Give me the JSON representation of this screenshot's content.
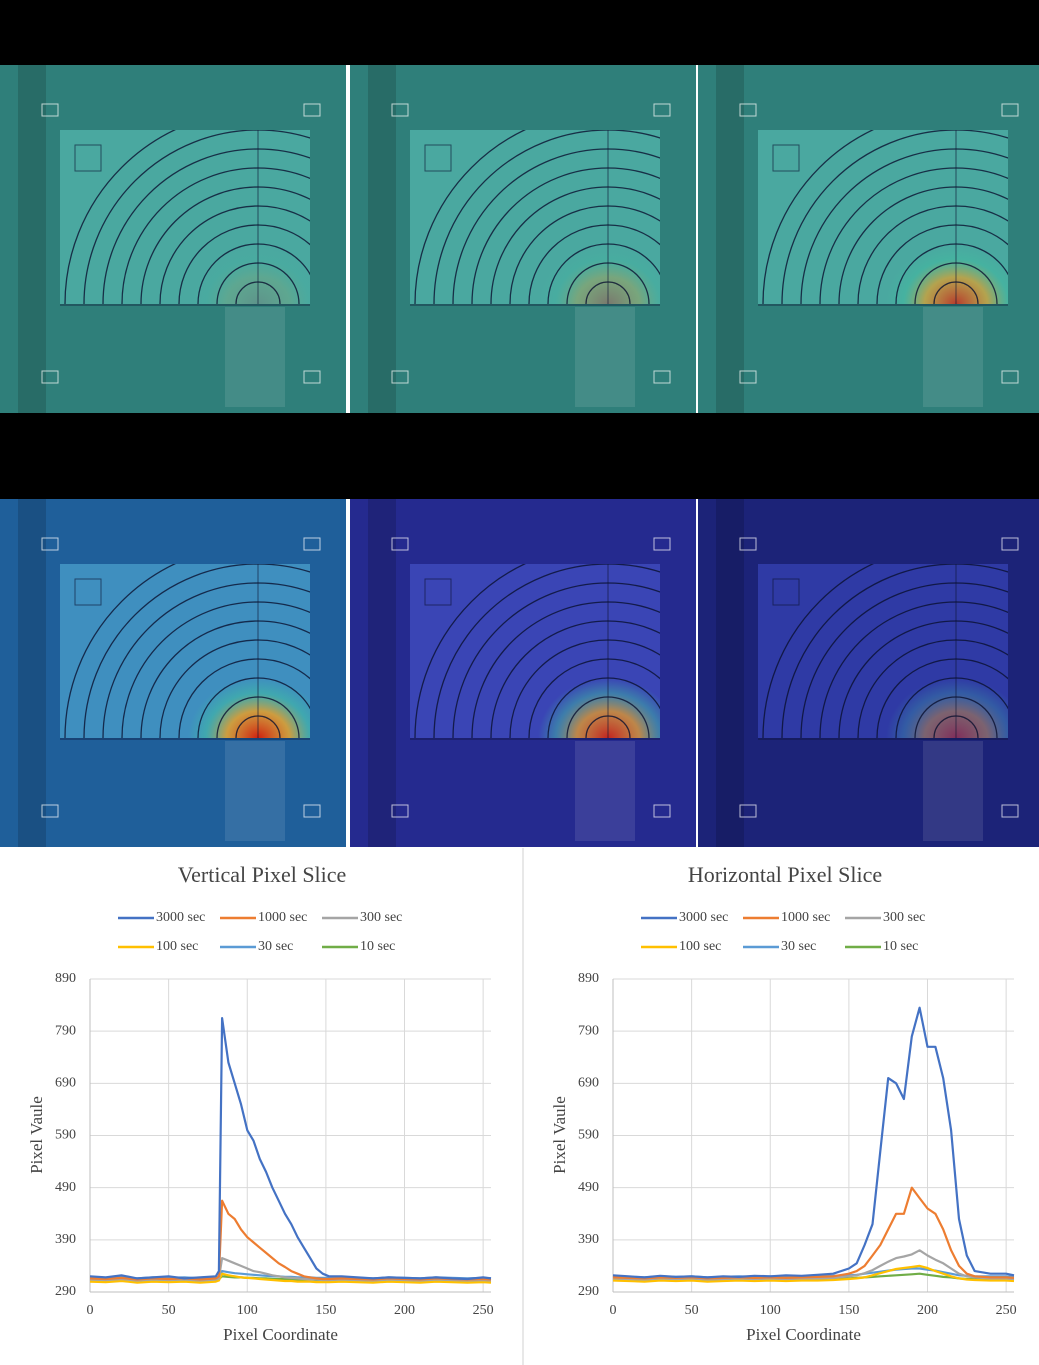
{
  "chart_data": [
    {
      "type": "line",
      "title": "Vertical Pixel Slice",
      "x_label": "Pixel Coordinate",
      "y_label": "Pixel Vaule",
      "x": [
        0,
        10,
        20,
        30,
        40,
        50,
        60,
        70,
        80,
        82,
        84,
        88,
        92,
        96,
        100,
        104,
        108,
        112,
        116,
        120,
        124,
        128,
        132,
        136,
        140,
        144,
        148,
        152,
        160,
        170,
        180,
        190,
        200,
        210,
        220,
        230,
        240,
        250,
        255
      ],
      "series": [
        {
          "name": "3000 sec",
          "color": "#4472c4",
          "values": [
            320,
            318,
            322,
            316,
            318,
            320,
            316,
            318,
            320,
            330,
            815,
            730,
            690,
            650,
            600,
            580,
            545,
            520,
            490,
            465,
            440,
            420,
            395,
            375,
            355,
            335,
            325,
            320,
            320,
            318,
            316,
            318,
            317,
            316,
            318,
            316,
            315,
            318,
            316
          ]
        },
        {
          "name": "1000 sec",
          "color": "#ed7d31",
          "values": [
            316,
            315,
            317,
            314,
            316,
            315,
            316,
            314,
            316,
            320,
            465,
            440,
            430,
            410,
            395,
            385,
            375,
            365,
            355,
            345,
            338,
            330,
            325,
            320,
            318,
            316,
            315,
            315,
            316,
            315,
            314,
            316,
            315,
            314,
            316,
            315,
            314,
            315,
            314
          ]
        },
        {
          "name": "300 sec",
          "color": "#a5a5a5",
          "values": [
            314,
            313,
            315,
            312,
            314,
            313,
            314,
            312,
            314,
            316,
            355,
            350,
            345,
            340,
            335,
            330,
            328,
            325,
            322,
            320,
            318,
            317,
            316,
            315,
            314,
            314,
            313,
            313,
            314,
            313,
            312,
            314,
            313,
            312,
            314,
            313,
            312,
            313,
            312
          ]
        },
        {
          "name": "100 sec",
          "color": "#ffc000",
          "values": [
            310,
            309,
            311,
            308,
            310,
            309,
            310,
            308,
            310,
            312,
            325,
            322,
            320,
            318,
            317,
            316,
            315,
            314,
            313,
            312,
            311,
            311,
            310,
            310,
            310,
            309,
            309,
            309,
            310,
            309,
            308,
            310,
            309,
            308,
            310,
            309,
            308,
            309,
            308
          ]
        },
        {
          "name": "30 sec",
          "color": "#5b9bd5",
          "values": [
            318,
            317,
            319,
            316,
            318,
            317,
            318,
            316,
            318,
            320,
            330,
            328,
            326,
            325,
            324,
            323,
            322,
            321,
            320,
            320,
            319,
            319,
            318,
            318,
            318,
            317,
            317,
            317,
            318,
            317,
            316,
            318,
            317,
            316,
            318,
            317,
            316,
            317,
            316
          ]
        },
        {
          "name": "10 sec",
          "color": "#70ad47",
          "values": [
            314,
            313,
            315,
            312,
            314,
            313,
            314,
            312,
            314,
            315,
            320,
            319,
            318,
            318,
            317,
            317,
            316,
            316,
            315,
            315,
            315,
            314,
            314,
            314,
            314,
            313,
            313,
            313,
            314,
            313,
            312,
            314,
            313,
            312,
            314,
            313,
            312,
            313,
            312
          ]
        }
      ],
      "xlim": [
        0,
        255
      ],
      "xticks": [
        0,
        50,
        100,
        150,
        200,
        250
      ],
      "ylim": [
        290,
        890
      ],
      "yticks": [
        290,
        390,
        490,
        590,
        690,
        790,
        890
      ],
      "grid": true,
      "legend": "top"
    },
    {
      "type": "line",
      "title": "Horizontal Pixel Slice",
      "x_label": "Pixel Coordinate",
      "y_label": "Pixel Vaule",
      "x": [
        0,
        10,
        20,
        30,
        40,
        50,
        60,
        70,
        80,
        90,
        100,
        110,
        120,
        130,
        140,
        150,
        155,
        160,
        165,
        170,
        175,
        180,
        185,
        190,
        195,
        200,
        205,
        210,
        215,
        220,
        225,
        230,
        240,
        250,
        255
      ],
      "series": [
        {
          "name": "3000 sec",
          "color": "#4472c4",
          "values": [
            322,
            320,
            318,
            321,
            319,
            320,
            318,
            320,
            319,
            321,
            320,
            322,
            321,
            323,
            325,
            335,
            345,
            380,
            420,
            560,
            700,
            690,
            660,
            780,
            835,
            760,
            760,
            700,
            600,
            430,
            360,
            330,
            325,
            325,
            322
          ]
        },
        {
          "name": "1000 sec",
          "color": "#ed7d31",
          "values": [
            318,
            317,
            316,
            318,
            317,
            318,
            316,
            317,
            318,
            317,
            318,
            317,
            318,
            319,
            320,
            325,
            330,
            340,
            360,
            380,
            410,
            440,
            440,
            490,
            470,
            450,
            440,
            410,
            370,
            340,
            325,
            320,
            318,
            318,
            317
          ]
        },
        {
          "name": "300 sec",
          "color": "#a5a5a5",
          "values": [
            316,
            315,
            314,
            316,
            315,
            316,
            314,
            315,
            316,
            315,
            316,
            315,
            316,
            316,
            317,
            320,
            322,
            326,
            332,
            340,
            348,
            355,
            358,
            362,
            370,
            360,
            352,
            345,
            335,
            325,
            320,
            318,
            316,
            316,
            315
          ]
        },
        {
          "name": "100 sec",
          "color": "#ffc000",
          "values": [
            312,
            311,
            310,
            312,
            311,
            312,
            310,
            311,
            312,
            311,
            312,
            311,
            312,
            312,
            313,
            315,
            316,
            318,
            322,
            326,
            330,
            334,
            336,
            338,
            340,
            336,
            330,
            325,
            320,
            316,
            314,
            313,
            312,
            312,
            311
          ]
        },
        {
          "name": "30 sec",
          "color": "#5b9bd5",
          "values": [
            320,
            319,
            318,
            320,
            319,
            320,
            318,
            319,
            320,
            319,
            320,
            319,
            320,
            320,
            321,
            322,
            323,
            325,
            327,
            329,
            331,
            333,
            334,
            335,
            335,
            333,
            331,
            328,
            325,
            322,
            321,
            320,
            320,
            320,
            319
          ]
        },
        {
          "name": "10 sec",
          "color": "#70ad47",
          "values": [
            315,
            314,
            313,
            315,
            314,
            315,
            313,
            314,
            315,
            314,
            315,
            314,
            315,
            315,
            315,
            316,
            317,
            318,
            319,
            320,
            321,
            322,
            323,
            324,
            325,
            323,
            321,
            319,
            318,
            316,
            315,
            315,
            314,
            314,
            313
          ]
        }
      ],
      "xlim": [
        0,
        255
      ],
      "xticks": [
        0,
        50,
        100,
        150,
        200,
        250
      ],
      "ylim": [
        290,
        890
      ],
      "yticks": [
        290,
        390,
        490,
        590,
        690,
        790,
        890
      ],
      "grid": true,
      "legend": "top"
    }
  ]
}
